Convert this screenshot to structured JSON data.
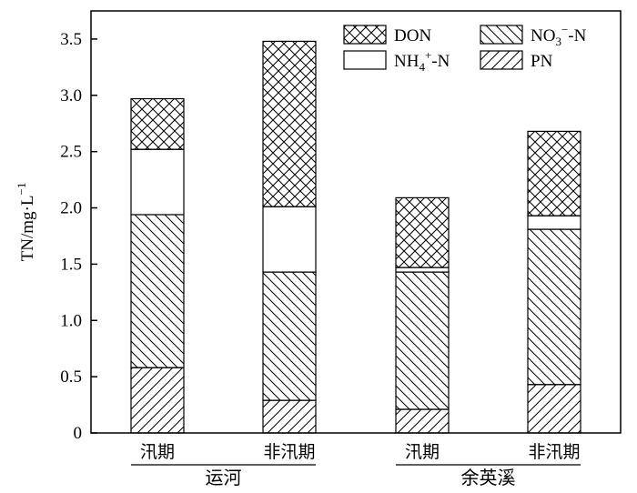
{
  "chart_data": {
    "type": "bar",
    "stacked": true,
    "ylabel": "TN/mg·L",
    "ylabel_superscript": "−1",
    "ylim": [
      0,
      3.75
    ],
    "yticks": [
      0,
      0.5,
      1.0,
      1.5,
      2.0,
      2.5,
      3.0,
      3.5
    ],
    "ytick_labels": [
      "0",
      "0.5",
      "1.0",
      "1.5",
      "2.0",
      "2.5",
      "3.0",
      "3.5"
    ],
    "categories": [
      "汛期",
      "非汛期",
      "汛期",
      "非汛期"
    ],
    "groups": [
      {
        "label": "运河",
        "categories": [
          0,
          1
        ]
      },
      {
        "label": "余英溪",
        "categories": [
          2,
          3
        ]
      }
    ],
    "series": [
      {
        "name": "PN",
        "pattern": "diag-fwd",
        "values": [
          0.58,
          0.29,
          0.21,
          0.43
        ]
      },
      {
        "name": "NO3−-N",
        "pattern": "diag-back",
        "values": [
          1.36,
          1.14,
          1.22,
          1.38
        ]
      },
      {
        "name": "NH4+-N",
        "pattern": "plain",
        "values": [
          0.58,
          0.58,
          0.04,
          0.12
        ]
      },
      {
        "name": "DON",
        "pattern": "cross",
        "values": [
          0.45,
          1.47,
          0.62,
          0.75
        ]
      }
    ],
    "legend": {
      "placement": "top-right",
      "entries": [
        {
          "series": "DON",
          "text": "DON"
        },
        {
          "series": "NO3−-N",
          "text": "NO",
          "sub": "3",
          "sup": "−",
          "suffix": "-N"
        },
        {
          "series": "NH4+-N",
          "text": "NH",
          "sub": "4",
          "sup": "+",
          "suffix": "-N"
        },
        {
          "series": "PN",
          "text": "PN"
        }
      ]
    },
    "grid": false
  }
}
